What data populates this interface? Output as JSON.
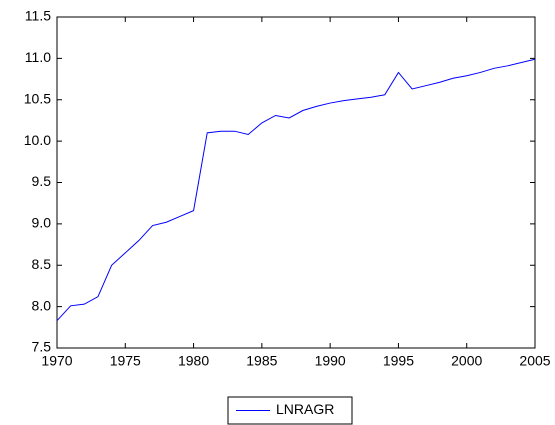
{
  "chart_data": {
    "type": "line",
    "x": [
      1970,
      1971,
      1972,
      1973,
      1974,
      1975,
      1976,
      1977,
      1978,
      1979,
      1980,
      1981,
      1982,
      1983,
      1984,
      1985,
      1986,
      1987,
      1988,
      1989,
      1990,
      1991,
      1992,
      1993,
      1994,
      1995,
      1996,
      1997,
      1998,
      1999,
      2000,
      2001,
      2002,
      2003,
      2004,
      2005
    ],
    "series": [
      {
        "name": "LNRAGR",
        "color": "#0000ff",
        "values": [
          7.83,
          8.01,
          8.03,
          8.12,
          8.5,
          8.65,
          8.8,
          8.98,
          9.02,
          9.09,
          9.16,
          10.1,
          10.12,
          10.12,
          10.08,
          10.22,
          10.31,
          10.28,
          10.37,
          10.42,
          10.46,
          10.49,
          10.51,
          10.53,
          10.56,
          10.83,
          10.63,
          10.67,
          10.71,
          10.76,
          10.79,
          10.83,
          10.88,
          10.91,
          10.95,
          10.99
        ]
      }
    ],
    "xlim": [
      1970,
      2005
    ],
    "xticks": [
      1970,
      1975,
      1980,
      1985,
      1990,
      1995,
      2000,
      2005
    ],
    "ylim": [
      7.5,
      11.5
    ],
    "yticks": [
      7.5,
      {
        "value": 8,
        "label": "8.0"
      },
      8.5,
      {
        "value": 9,
        "label": "9.0"
      },
      9.5,
      {
        "value": 10,
        "label": "10.0"
      },
      10.5,
      {
        "value": 11,
        "label": "11.0"
      },
      11.5
    ],
    "legend": "bottom"
  }
}
